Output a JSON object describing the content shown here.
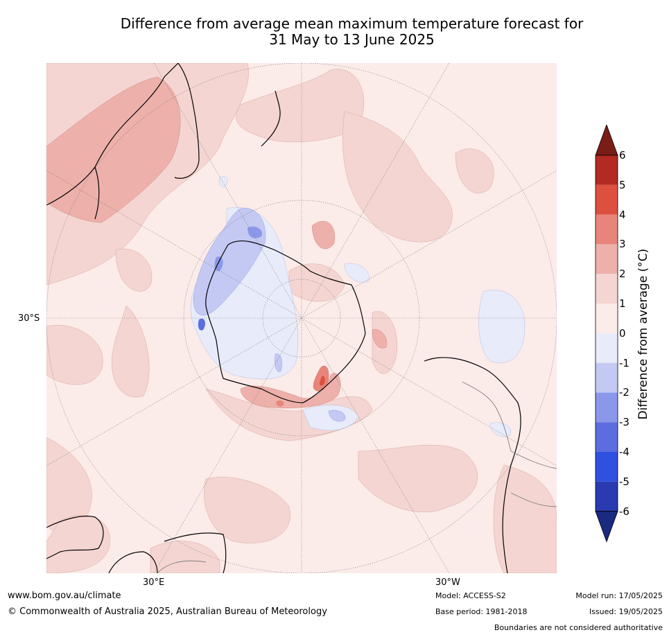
{
  "title": {
    "line1": "Difference from average mean maximum temperature forecast for",
    "line2": "31 May to 13 June 2025"
  },
  "map": {
    "projection": "south-polar-stereographic",
    "lat_label": "30°S",
    "lon_labels": [
      "30°E",
      "30°W"
    ],
    "land_outline_color": "#000000",
    "boundary_color": "#7f7f7f",
    "ocean_base_color": "#fbebe9"
  },
  "colorbar": {
    "label": "Difference from average (°C)",
    "ticks": [
      "6",
      "5",
      "4",
      "3",
      "2",
      "1",
      "0",
      "-1",
      "-2",
      "-3",
      "-4",
      "-5",
      "-6"
    ],
    "colors": [
      "#7a1d17",
      "#b22a22",
      "#dd5040",
      "#e8857a",
      "#edb0aa",
      "#f4d5d1",
      "#fbebe9",
      "#e7ebfa",
      "#c3c9f2",
      "#8b98ea",
      "#5c6de0",
      "#3050e0",
      "#2a3ab0",
      "#1a2a80"
    ]
  },
  "footer": {
    "website": "www.bom.gov.au/climate",
    "copyright": "© Commonwealth of Australia 2025, Australian Bureau of Meteorology",
    "model": "Model: ACCESS-S2",
    "base_period": "Base period: 1981-2018",
    "model_run": "Model run: 17/05/2025",
    "issued": "Issued: 19/05/2025",
    "disclaimer": "Boundaries are not considered authoritative"
  }
}
